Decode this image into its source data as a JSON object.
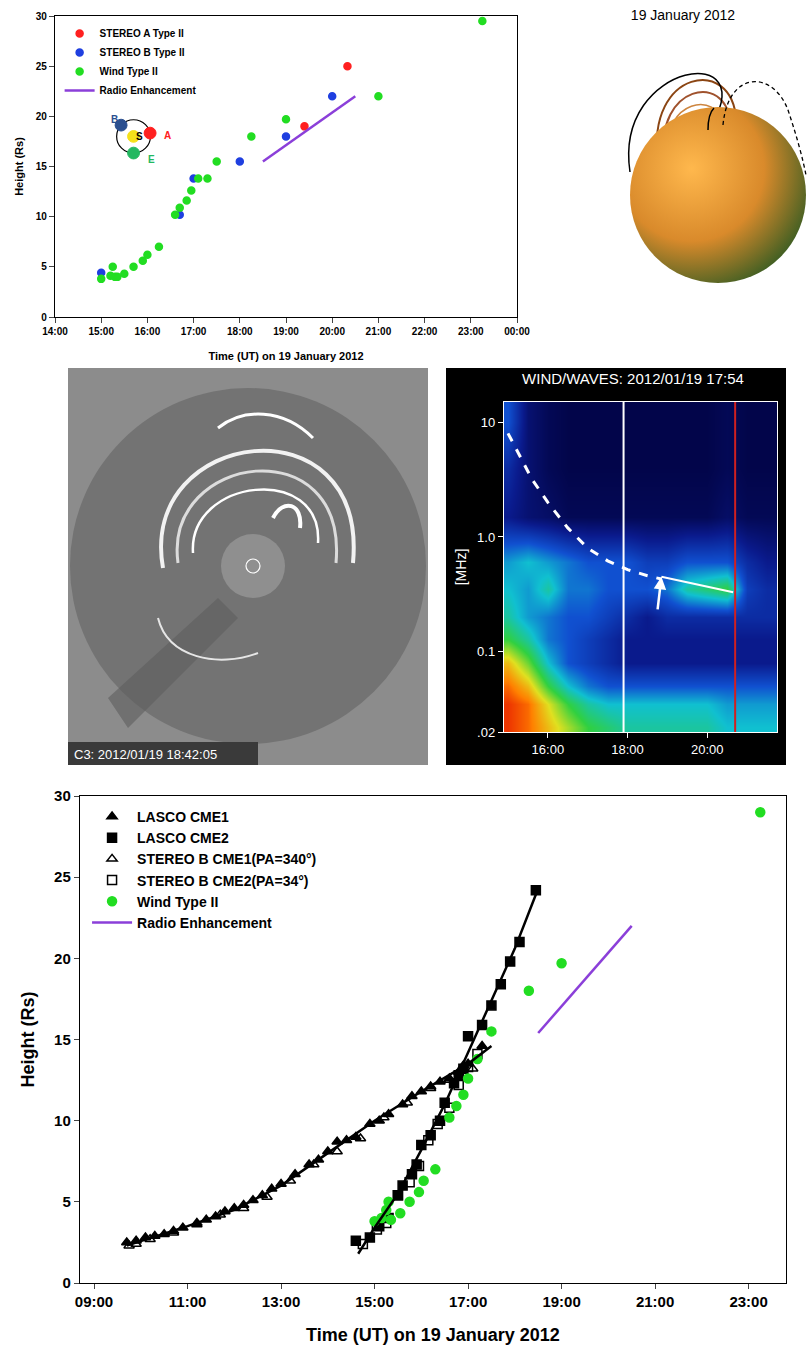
{
  "chart_data": [
    {
      "type": "scatter",
      "x_label": "Time (UT) on 19 January 2012",
      "y_label": "Height (Rs)",
      "xlim": [
        14,
        24
      ],
      "xticks": [
        {
          "value": 14,
          "label": "14:00"
        },
        {
          "value": 15,
          "label": "15:00"
        },
        {
          "value": 16,
          "label": "16:00"
        },
        {
          "value": 17,
          "label": "17:00"
        },
        {
          "value": 18,
          "label": "18:00"
        },
        {
          "value": 19,
          "label": "19:00"
        },
        {
          "value": 20,
          "label": "20:00"
        },
        {
          "value": 21,
          "label": "21:00"
        },
        {
          "value": 22,
          "label": "22:00"
        },
        {
          "value": 23,
          "label": "23:00"
        },
        {
          "value": 24,
          "label": "00:00"
        }
      ],
      "ylim": [
        0,
        30
      ],
      "yticks": [
        0,
        5,
        10,
        15,
        20,
        25,
        30
      ],
      "legend": "top-left",
      "series": [
        {
          "name": "STEREO A Type II",
          "type": "scatter",
          "marker": "circle",
          "color": "#ff2020",
          "x": [
            19.4,
            20.33
          ],
          "values": [
            19,
            25
          ]
        },
        {
          "name": "STEREO B Type II",
          "type": "scatter",
          "marker": "circle",
          "color": "#1f3fe0",
          "x": [
            15.0,
            16.7,
            17.0,
            18.0,
            19.0,
            20.0
          ],
          "values": [
            4.4,
            10.2,
            13.8,
            15.5,
            18,
            22
          ]
        },
        {
          "name": "Wind Type II",
          "type": "scatter",
          "marker": "circle",
          "color": "#22dd22",
          "x": [
            15.0,
            15.2,
            15.25,
            15.3,
            15.35,
            15.5,
            15.7,
            15.9,
            16.0,
            16.25,
            16.6,
            16.7,
            16.85,
            16.95,
            17.1,
            17.3,
            17.5,
            18.25,
            19.0,
            21.0,
            23.25
          ],
          "values": [
            3.8,
            4.1,
            5.0,
            4.0,
            4.0,
            4.3,
            5.0,
            5.6,
            6.2,
            7.0,
            10.2,
            10.9,
            11.6,
            12.6,
            13.8,
            13.8,
            15.5,
            18,
            19.7,
            22,
            29.5
          ]
        },
        {
          "name": "Radio Enhancement",
          "type": "line",
          "line_style": "solid",
          "color": "#8b3fd9",
          "x": [
            18.5,
            20.5
          ],
          "values": [
            15.5,
            22
          ]
        }
      ],
      "annotations": [
        {
          "text": "B",
          "color": "#2b4f8f"
        },
        {
          "text": "S",
          "color": "#f5e11a"
        },
        {
          "text": "A",
          "color": "#ff2020"
        },
        {
          "text": "E",
          "color": "#22b860"
        }
      ]
    },
    {
      "type": "heatmap",
      "title": "WIND/WAVES: 2012/01/19 17:54",
      "y_label": "[MHz]",
      "log": "y",
      "x": [
        15,
        15.5,
        16,
        16.5,
        17,
        17.5,
        18,
        18.5,
        19,
        19.5,
        20,
        20.5,
        21,
        21.5
      ],
      "y": [
        0.022,
        0.035,
        0.05,
        0.08,
        0.13,
        0.2,
        0.35,
        0.6,
        1.5,
        4,
        10
      ],
      "cells": [
        [
          0.95,
          0.9,
          0.8,
          0.7,
          0.6,
          0.55,
          0.5,
          0.5,
          0.5,
          0.5,
          0.5,
          0.45,
          0.45,
          0.45
        ],
        [
          0.95,
          0.9,
          0.75,
          0.6,
          0.5,
          0.45,
          0.45,
          0.45,
          0.45,
          0.45,
          0.45,
          0.4,
          0.4,
          0.4
        ],
        [
          0.9,
          0.8,
          0.6,
          0.45,
          0.35,
          0.3,
          0.3,
          0.3,
          0.3,
          0.3,
          0.3,
          0.3,
          0.3,
          0.3
        ],
        [
          0.8,
          0.65,
          0.45,
          0.3,
          0.25,
          0.2,
          0.15,
          0.15,
          0.15,
          0.15,
          0.15,
          0.15,
          0.15,
          0.15
        ],
        [
          0.6,
          0.5,
          0.35,
          0.3,
          0.25,
          0.2,
          0.15,
          0.15,
          0.15,
          0.15,
          0.15,
          0.15,
          0.15,
          0.15
        ],
        [
          0.5,
          0.4,
          0.35,
          0.3,
          0.3,
          0.25,
          0.2,
          0.15,
          0.2,
          0.2,
          0.2,
          0.2,
          0.2,
          0.2
        ],
        [
          0.45,
          0.4,
          0.5,
          0.35,
          0.35,
          0.3,
          0.3,
          0.3,
          0.35,
          0.5,
          0.55,
          0.6,
          0.25,
          0.2
        ],
        [
          0.4,
          0.45,
          0.4,
          0.35,
          0.3,
          0.3,
          0.3,
          0.25,
          0.25,
          0.3,
          0.3,
          0.3,
          0.2,
          0.15
        ],
        [
          0.15,
          0.1,
          0.08,
          0.05,
          0.05,
          0.05,
          0.05,
          0.05,
          0.05,
          0.05,
          0.05,
          0.08,
          0.05,
          0.05
        ],
        [
          0.2,
          0.1,
          0.05,
          0.03,
          0.03,
          0.03,
          0.03,
          0.03,
          0.03,
          0.03,
          0.03,
          0.05,
          0.03,
          0.03
        ],
        [
          0.3,
          0.1,
          0.05,
          0.03,
          0.03,
          0.03,
          0.03,
          0.03,
          0.03,
          0.03,
          0.03,
          0.05,
          0.03,
          0.03
        ]
      ],
      "zlim": [
        0,
        1
      ],
      "xlim": [
        14.9,
        21.75
      ],
      "xticks": [
        {
          "value": 16,
          "label": "16:00"
        },
        {
          "value": 18,
          "label": "18:00"
        },
        {
          "value": 20,
          "label": "20:00"
        }
      ],
      "ylim": [
        0.02,
        15
      ],
      "yticks": [
        {
          "value": 0.02,
          "label": ".02"
        },
        0.1,
        {
          "value": 1,
          "label": "1.0"
        },
        10
      ],
      "series": [
        {
          "type": "line",
          "line_style": "dash",
          "color": "#ffffff",
          "x": [
            15.0,
            15.3,
            15.6,
            16.0,
            16.5,
            17.0,
            17.5,
            18.0,
            18.5,
            18.85
          ],
          "values": [
            8,
            5,
            3.2,
            2,
            1.2,
            0.8,
            0.62,
            0.52,
            0.46,
            0.43
          ]
        },
        {
          "type": "line",
          "line_style": "solid",
          "color": "#ffffff",
          "x": [
            18.85,
            20.65
          ],
          "values": [
            0.45,
            0.33
          ]
        },
        {
          "type": "line",
          "line_style": "solid",
          "color": "#ffffff",
          "x": [
            17.9,
            17.9
          ],
          "values": [
            0.02,
            15
          ]
        },
        {
          "type": "line",
          "line_style": "solid",
          "color": "#d02020",
          "x": [
            20.7,
            20.7
          ],
          "values": [
            0.02,
            15
          ]
        }
      ]
    },
    {
      "type": "scatter",
      "x_label": "Time (UT) on 19 January 2012",
      "y_label": "Height (Rs)",
      "xlim": [
        8.7,
        23.8
      ],
      "xticks": [
        {
          "value": 9,
          "label": "09:00"
        },
        {
          "value": 11,
          "label": "11:00"
        },
        {
          "value": 13,
          "label": "13:00"
        },
        {
          "value": 15,
          "label": "15:00"
        },
        {
          "value": 17,
          "label": "17:00"
        },
        {
          "value": 19,
          "label": "19:00"
        },
        {
          "value": 21,
          "label": "21:00"
        },
        {
          "value": 23,
          "label": "23:00"
        }
      ],
      "ylim": [
        0,
        30
      ],
      "yticks": [
        0,
        5,
        10,
        15,
        20,
        25,
        30
      ],
      "legend": "top-left",
      "series": [
        {
          "name": "LASCO CME1",
          "type": "scatter",
          "marker": "triangle-up",
          "color": "#000000",
          "x": [
            9.7,
            9.9,
            10.1,
            10.3,
            10.5,
            10.7,
            10.9,
            11.2,
            11.4,
            11.6,
            11.8,
            12.0,
            12.2,
            12.4,
            12.6,
            12.8,
            13.0,
            13.3,
            13.6,
            13.8,
            14.0,
            14.2,
            14.4,
            14.6,
            14.9,
            15.1,
            15.3,
            15.6,
            15.8,
            16.0,
            16.2,
            16.4,
            16.6,
            16.8,
            17.0,
            17.3
          ],
          "values": [
            2.5,
            2.6,
            2.8,
            2.9,
            3.0,
            3.2,
            3.4,
            3.7,
            3.9,
            4.1,
            4.4,
            4.6,
            4.8,
            5.1,
            5.4,
            5.8,
            6.1,
            6.7,
            7.3,
            7.6,
            8.1,
            8.7,
            8.8,
            9.0,
            9.8,
            10.0,
            10.4,
            11.0,
            11.5,
            11.8,
            12.1,
            12.4,
            12.6,
            13.0,
            13.5,
            14.6
          ]
        },
        {
          "name": "LASCO CME2",
          "type": "scatter",
          "marker": "square",
          "color": "#000000",
          "x": [
            14.6,
            14.9,
            15.1,
            15.3,
            15.5,
            15.6,
            15.8,
            15.9,
            16.0,
            16.2,
            16.4,
            16.5,
            16.7,
            16.8,
            16.9,
            17.0,
            17.3,
            17.5,
            17.7,
            17.9,
            18.1,
            18.45
          ],
          "values": [
            2.6,
            2.8,
            3.5,
            4.0,
            5.4,
            6.0,
            6.7,
            7.3,
            8.5,
            9.1,
            10.0,
            11.1,
            12.3,
            12.8,
            13.2,
            15.2,
            15.9,
            17.1,
            18.4,
            19.8,
            21.0,
            24.2
          ]
        },
        {
          "name": "STEREO B CME1(PA=340°)",
          "type": "scatter",
          "marker": "triangle-up-open",
          "color": "#000000",
          "x": [
            9.75,
            9.9,
            10.2,
            10.7,
            11.2,
            11.7,
            12.2,
            12.7,
            13.2,
            13.7,
            14.2,
            14.7,
            15.2,
            15.7,
            16.2,
            16.6,
            16.9,
            17.1
          ],
          "values": [
            2.3,
            2.4,
            2.7,
            3.1,
            3.6,
            4.2,
            4.6,
            5.3,
            6.3,
            7.3,
            8.1,
            8.9,
            10.2,
            11.1,
            12.0,
            12.5,
            13.4,
            13.2
          ]
        },
        {
          "name": "STEREO B CME2(PA=34°)",
          "type": "scatter",
          "marker": "square-open",
          "color": "#000000",
          "x": [
            14.75,
            15.05,
            15.25,
            15.5,
            15.75,
            15.95,
            16.15,
            16.35,
            16.6,
            16.8,
            17.0,
            17.2
          ],
          "values": [
            2.4,
            3.3,
            3.7,
            5.4,
            6.2,
            7.2,
            8.8,
            9.8,
            10.8,
            12.2,
            13.3,
            14.1
          ]
        },
        {
          "name": "Wind Type II",
          "type": "scatter",
          "marker": "circle",
          "color": "#22dd22",
          "x": [
            15.0,
            15.15,
            15.25,
            15.3,
            15.35,
            15.55,
            15.75,
            15.95,
            16.05,
            16.3,
            16.6,
            16.75,
            16.9,
            17.0,
            17.2,
            17.5,
            18.3,
            19.0,
            23.25
          ],
          "values": [
            3.8,
            4.0,
            4.5,
            5.0,
            3.9,
            4.3,
            5.0,
            5.6,
            6.3,
            7.0,
            10.2,
            10.9,
            11.6,
            12.6,
            13.8,
            15.5,
            18,
            19.7,
            29
          ]
        },
        {
          "name": "Radio Enhancement",
          "type": "line",
          "line_style": "solid",
          "color": "#8b3fd9",
          "x": [
            18.5,
            20.5
          ],
          "values": [
            15.4,
            22
          ]
        },
        {
          "type": "line",
          "line_style": "solid",
          "color": "#000000",
          "x": [
            9.7,
            11,
            12,
            13,
            14,
            15,
            16,
            17,
            17.5
          ],
          "values": [
            2.3,
            3.5,
            4.5,
            6.0,
            8.0,
            10.0,
            11.8,
            13.5,
            14.6
          ]
        },
        {
          "type": "line",
          "line_style": "solid",
          "color": "#000000",
          "x": [
            14.65,
            15.0,
            15.5,
            16,
            16.5,
            17,
            17.5,
            18,
            18.5
          ],
          "values": [
            1.8,
            3.4,
            5.5,
            8.2,
            11.0,
            14.2,
            17.3,
            20.6,
            24.3
          ]
        }
      ]
    }
  ],
  "diagram": {
    "title": "19 January 2012"
  },
  "image": {
    "label": "C3: 2012/01/19 18:42:05"
  }
}
